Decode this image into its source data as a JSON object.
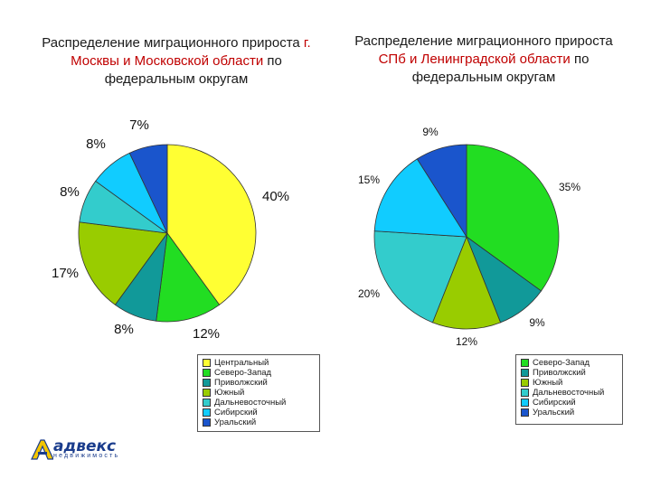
{
  "colors": {
    "Центральный": "#ffff33",
    "Северо-Запад": "#22dd22",
    "Приволжский": "#119999",
    "Южный": "#99cc00",
    "Дальневосточный": "#33cccc",
    "Сибирский": "#11ccff",
    "Уральский": "#1a55cc"
  },
  "chart_data": [
    {
      "type": "pie",
      "title_parts": [
        "Распределение миграционного прироста ",
        "г. Москвы и Московской",
        " ",
        "области",
        " по федеральным округам"
      ],
      "labels": [
        "Центральный",
        "Северо-Запад",
        "Приволжский",
        "Южный",
        "Дальневосточный",
        "Сибирский",
        "Уральский"
      ],
      "values": [
        40,
        12,
        8,
        17,
        8,
        8,
        7
      ],
      "value_labels": [
        "40%",
        "12%",
        "8%",
        "17%",
        "8%",
        "8%",
        "7%"
      ],
      "legend": [
        "Центральный",
        "Северо-Запад",
        "Приволжский",
        "Южный",
        "Дальневосточный",
        "Сибирский",
        "Уральский"
      ],
      "legend_placement": "bottom"
    },
    {
      "type": "pie",
      "title_parts": [
        "Распределение миграционного прироста ",
        "СПб и Ленинградской",
        " ",
        "области",
        " по федеральным округам"
      ],
      "labels": [
        "Северо-Запад",
        "Приволжский",
        "Южный",
        "Дальневосточный",
        "Сибирский",
        "Уральский"
      ],
      "values": [
        35,
        9,
        12,
        20,
        15,
        9
      ],
      "value_labels": [
        "35%",
        "9%",
        "12%",
        "20%",
        "15%",
        "9%"
      ],
      "legend": [
        "Северо-Запад",
        "Приволжский",
        "Южный",
        "Дальневосточный",
        "Сибирский",
        "Уральский"
      ],
      "legend_placement": "bottom-right"
    }
  ],
  "logo": {
    "word": "адвекс",
    "sub": "недвижимость"
  }
}
